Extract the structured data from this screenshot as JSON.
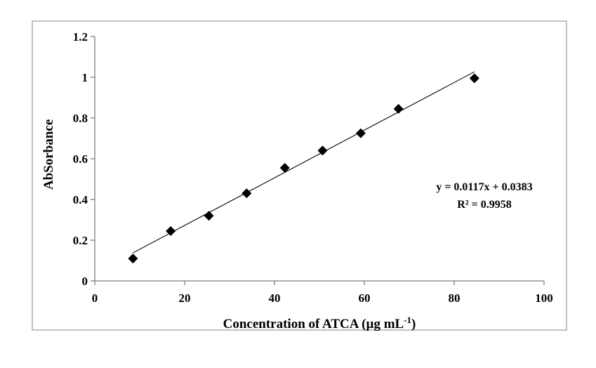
{
  "chart_data": {
    "type": "scatter",
    "xlabel": "Concentration  of ATCA (µg mL",
    "xlabel_sup": "-1",
    "xlabel_end": ")",
    "ylabel": "AbSorbance",
    "xlim": [
      0,
      100
    ],
    "ylim": [
      0,
      1.2
    ],
    "x_ticks": [
      "0",
      "20",
      "40",
      "60",
      "80",
      "100"
    ],
    "y_ticks": [
      "0",
      "0.2",
      "0.4",
      "0.6",
      "0.8",
      "1",
      "1.2"
    ],
    "series": [
      {
        "marker": "diamond",
        "color": "#000000",
        "points": [
          {
            "x": 8.5,
            "y": 0.11
          },
          {
            "x": 16.9,
            "y": 0.245
          },
          {
            "x": 25.4,
            "y": 0.32
          },
          {
            "x": 33.8,
            "y": 0.43
          },
          {
            "x": 42.3,
            "y": 0.555
          },
          {
            "x": 50.7,
            "y": 0.64
          },
          {
            "x": 59.2,
            "y": 0.725
          },
          {
            "x": 67.6,
            "y": 0.845
          },
          {
            "x": 84.5,
            "y": 0.995
          }
        ]
      }
    ],
    "trendline": {
      "slope": 0.0117,
      "intercept": 0.0383,
      "x_range": [
        8.5,
        84.5
      ]
    },
    "equation": "y = 0.0117x + 0.0383",
    "r2_prefix": "R² = ",
    "r2_value": "0.9958",
    "grid": false,
    "legend": "none"
  }
}
